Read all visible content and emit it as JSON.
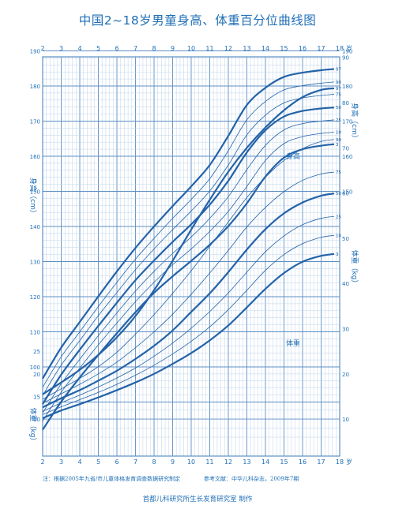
{
  "page": {
    "title": "中国2~18岁男童身高、体重百分位曲线图",
    "note": "注：根据2005年九省/市儿童体格发育调查数据研究制定",
    "reference": "参考文献：中华儿科杂志，2009年7期",
    "maker": "首都儿科研究所生长发育研究室  制作"
  },
  "colors": {
    "line": "#2463a8",
    "grid_major": "#5d8fc4",
    "grid_minor": "#b9cfe6",
    "text": "#1f6fb6"
  },
  "chart_data": {
    "type": "line",
    "x": [
      2,
      3,
      4,
      5,
      6,
      7,
      8,
      9,
      10,
      11,
      12,
      13,
      14,
      15,
      16,
      17,
      18
    ],
    "xlim": [
      2,
      18
    ],
    "x_ticks": [
      "2",
      "3",
      "4",
      "5",
      "6",
      "7",
      "8",
      "9",
      "10",
      "11",
      "12",
      "13",
      "14",
      "15",
      "16",
      "17",
      "18"
    ],
    "x_unit": "岁",
    "height": {
      "ylabel": "身高（cm）",
      "ylabel_right": "身高（cm）",
      "ylim": [
        80,
        190
      ],
      "y_ticks_left": [
        100,
        110,
        120,
        130,
        140,
        150,
        160,
        170,
        180,
        190
      ],
      "y_ticks_right": [
        150,
        160,
        170,
        180,
        190
      ],
      "label": "身高",
      "series": [
        {
          "name": "97",
          "values": [
            96.7,
            105.5,
            112.8,
            120.1,
            127.2,
            133.9,
            140.0,
            145.8,
            151.4,
            157.5,
            165.8,
            174.6,
            179.5,
            182.6,
            183.8,
            184.5,
            185.0
          ]
        },
        {
          "name": "90",
          "values": [
            94.2,
            102.9,
            110.0,
            117.2,
            124.1,
            130.7,
            136.6,
            142.3,
            147.7,
            153.6,
            161.6,
            170.4,
            175.6,
            178.9,
            180.1,
            180.8,
            181.3
          ]
        },
        {
          "name": "75",
          "values": [
            91.9,
            100.5,
            107.5,
            114.6,
            121.2,
            127.7,
            133.6,
            139.1,
            144.4,
            150.1,
            157.5,
            166.1,
            171.7,
            175.2,
            176.6,
            177.3,
            177.8
          ]
        },
        {
          "name": "50",
          "values": [
            89.4,
            97.8,
            104.9,
            111.7,
            118.3,
            124.7,
            130.3,
            135.6,
            140.6,
            146.2,
            153.0,
            161.1,
            167.4,
            171.3,
            172.9,
            173.6,
            174.0
          ]
        },
        {
          "name": "25",
          "values": [
            86.9,
            95.2,
            102.2,
            108.9,
            115.4,
            121.6,
            127.2,
            132.3,
            137.0,
            142.3,
            148.5,
            156.2,
            163.1,
            167.5,
            169.3,
            170.0,
            170.5
          ]
        },
        {
          "name": "10",
          "values": [
            84.6,
            92.8,
            99.7,
            106.3,
            112.5,
            118.6,
            124.1,
            129.1,
            133.6,
            138.6,
            144.3,
            151.4,
            158.8,
            163.6,
            165.6,
            166.5,
            167.0
          ]
        },
        {
          "name": "3",
          "values": [
            82.1,
            90.1,
            97.0,
            103.4,
            109.6,
            115.6,
            121.1,
            125.8,
            130.2,
            134.8,
            140.1,
            146.6,
            154.2,
            159.6,
            162.0,
            163.0,
            163.6
          ]
        }
      ]
    },
    "weight": {
      "ylabel": "体重（kg）",
      "ylabel_right": "体重（kg）",
      "ylim": [
        5,
        90
      ],
      "y_ticks_left": [
        10,
        15,
        20,
        25
      ],
      "y_ticks_right": [
        10,
        20,
        30,
        40,
        50,
        60,
        70,
        80,
        90
      ],
      "label": "体重",
      "series": [
        {
          "name": "97",
          "values": [
            15.5,
            18.1,
            20.9,
            24.2,
            28.1,
            32.8,
            38.5,
            45.0,
            51.9,
            58.5,
            64.7,
            70.0,
            74.5,
            78.3,
            81.2,
            82.8,
            83.3
          ]
        },
        {
          "name": "90",
          "values": [
            14.4,
            16.7,
            19.0,
            21.6,
            24.8,
            28.8,
            33.1,
            37.8,
            42.8,
            48.2,
            53.6,
            59.0,
            63.5,
            67.2,
            69.8,
            71.4,
            72.0
          ]
        },
        {
          "name": "75",
          "values": [
            13.5,
            15.6,
            17.7,
            20.0,
            22.6,
            25.8,
            29.3,
            33.2,
            37.6,
            42.3,
            47.3,
            52.5,
            56.8,
            60.3,
            62.8,
            64.2,
            64.8
          ]
        },
        {
          "name": "50",
          "values": [
            12.6,
            14.6,
            16.4,
            18.5,
            20.7,
            23.3,
            26.2,
            29.6,
            33.7,
            37.8,
            42.5,
            47.5,
            52.0,
            55.5,
            57.9,
            59.4,
            60.1
          ]
        },
        {
          "name": "25",
          "values": [
            11.7,
            13.6,
            15.3,
            17.1,
            19.1,
            21.3,
            23.9,
            26.8,
            30.1,
            33.8,
            37.9,
            42.5,
            47.0,
            50.5,
            53.0,
            54.4,
            55.0
          ]
        },
        {
          "name": "10",
          "values": [
            11.0,
            12.7,
            14.3,
            15.9,
            17.7,
            19.7,
            21.9,
            24.4,
            27.2,
            30.4,
            34.2,
            38.5,
            42.9,
            46.4,
            48.8,
            50.2,
            50.8
          ]
        },
        {
          "name": "3",
          "values": [
            10.2,
            11.9,
            13.3,
            14.8,
            16.4,
            18.1,
            20.0,
            22.2,
            24.6,
            27.4,
            30.7,
            34.7,
            38.8,
            42.3,
            44.8,
            46.1,
            46.7
          ]
        }
      ]
    },
    "grid": true
  }
}
